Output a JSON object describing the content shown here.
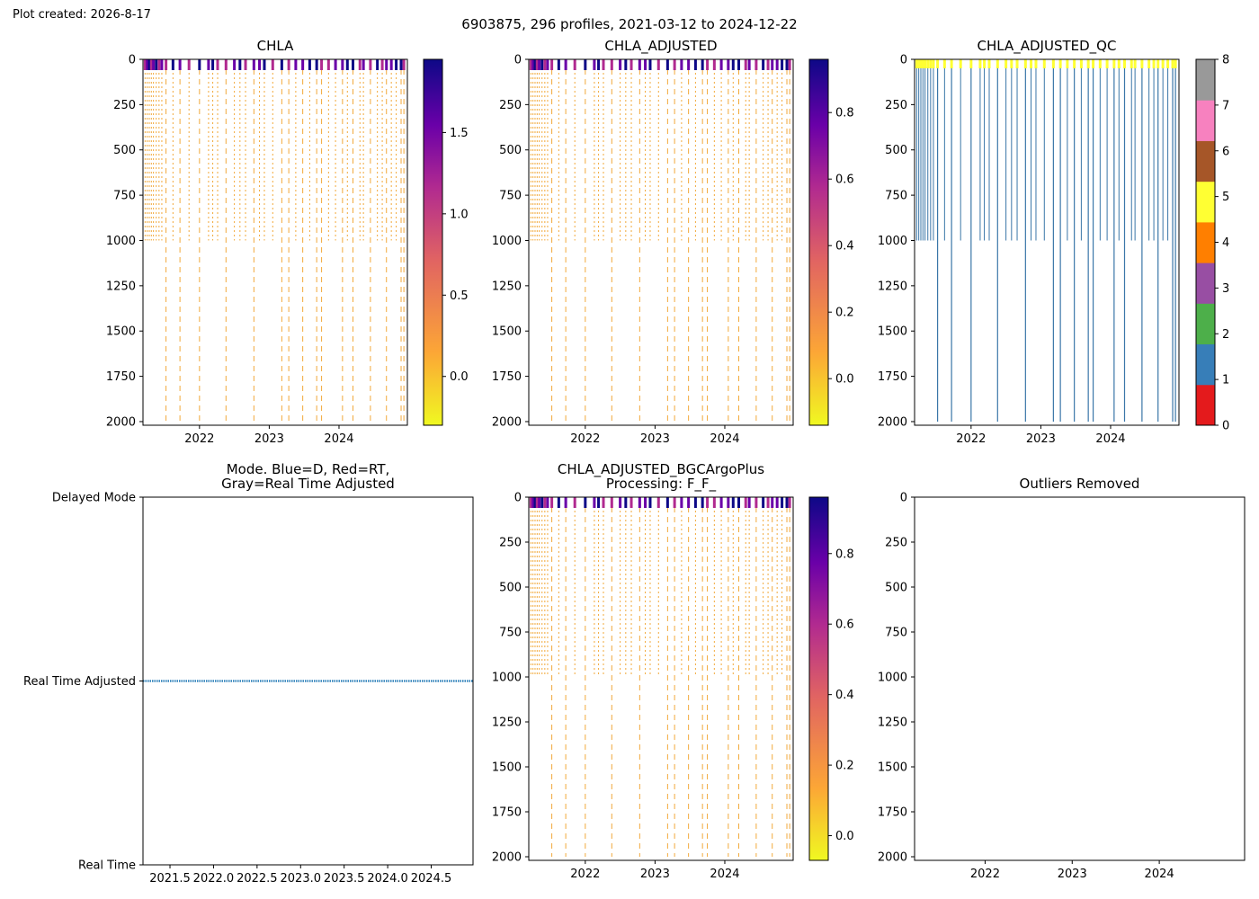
{
  "figure": {
    "created_label": "Plot created: 2026-8-17",
    "suptitle": "6903875, 296 profiles, 2021-03-12 to 2024-12-22"
  },
  "colors": {
    "plasma_stops": [
      "#f0f921",
      "#fca636",
      "#e16462",
      "#b12a90",
      "#6a00a8",
      "#0d0887"
    ],
    "qc_colors": [
      "#e41a1c",
      "#377eb8",
      "#4daf4a",
      "#984ea3",
      "#ff7f00",
      "#ffff33",
      "#a65628",
      "#f781bf",
      "#999999"
    ],
    "mode_line": "#1f77b4",
    "profile_line": "#f2a93b",
    "qc_profile_line": "#3a76a8"
  },
  "chart_data": [
    {
      "type": "heatmap",
      "title": "CHLA",
      "xlabel": "",
      "ylabel": "",
      "xlim": [
        2021.19,
        2024.98
      ],
      "ylim": [
        2020,
        0
      ],
      "xticks": [
        2022,
        2023,
        2024
      ],
      "yticks": [
        0,
        250,
        500,
        750,
        1000,
        1250,
        1500,
        1750,
        2000
      ],
      "colorbar": {
        "range": [
          -0.3,
          1.95
        ],
        "ticks": [
          0.0,
          0.5,
          1.0,
          1.5
        ],
        "tick_labels": [
          "0.0",
          "0.5",
          "1.0",
          "1.5"
        ],
        "colormap": "plasma_r"
      }
    },
    {
      "type": "heatmap",
      "title": "CHLA_ADJUSTED",
      "xlabel": "",
      "ylabel": "",
      "xlim": [
        2021.19,
        2024.98
      ],
      "ylim": [
        2020,
        0
      ],
      "xticks": [
        2022,
        2023,
        2024
      ],
      "yticks": [
        0,
        250,
        500,
        750,
        1000,
        1250,
        1500,
        1750,
        2000
      ],
      "colorbar": {
        "range": [
          -0.14,
          0.96
        ],
        "ticks": [
          0.0,
          0.2,
          0.4,
          0.6,
          0.8
        ],
        "tick_labels": [
          "0.0",
          "0.2",
          "0.4",
          "0.6",
          "0.8"
        ],
        "colormap": "plasma_r"
      }
    },
    {
      "type": "heatmap",
      "title": "CHLA_ADJUSTED_QC",
      "xlabel": "",
      "ylabel": "",
      "xlim": [
        2021.19,
        2024.98
      ],
      "ylim": [
        2020,
        0
      ],
      "xticks": [
        2022,
        2023,
        2024
      ],
      "yticks": [
        0,
        250,
        500,
        750,
        1000,
        1250,
        1500,
        1750,
        2000
      ],
      "colorbar": {
        "range": [
          0,
          8
        ],
        "ticks": [
          0,
          1,
          2,
          3,
          4,
          5,
          6,
          7,
          8
        ],
        "tick_labels": [
          "0",
          "1",
          "2",
          "3",
          "4",
          "5",
          "6",
          "7",
          "8"
        ],
        "colormap": "qc"
      }
    },
    {
      "type": "scatter",
      "title": "Mode. Blue=D, Red=RT,\nGray=Real Time Adjusted",
      "xlabel": "",
      "ylabel": "",
      "xlim": [
        2021.19,
        2024.98
      ],
      "xticks": [
        2021.5,
        2022.0,
        2022.5,
        2023.0,
        2023.5,
        2024.0,
        2024.5
      ],
      "xtick_labels": [
        "2021.5",
        "2022.0",
        "2022.5",
        "2023.0",
        "2023.5",
        "2024.0",
        "2024.5"
      ],
      "ycategories": [
        "Delayed Mode",
        "Real Time Adjusted",
        "Real Time"
      ],
      "series": [
        {
          "y": "Real Time Adjusted",
          "x_range": [
            2021.19,
            2024.98
          ]
        }
      ]
    },
    {
      "type": "heatmap",
      "title": "CHLA_ADJUSTED_BGCArgoPlus\nProcessing: F_F_",
      "xlabel": "",
      "ylabel": "",
      "xlim": [
        2021.19,
        2024.98
      ],
      "ylim": [
        2020,
        0
      ],
      "xticks": [
        2022,
        2023,
        2024
      ],
      "yticks": [
        0,
        250,
        500,
        750,
        1000,
        1250,
        1500,
        1750,
        2000
      ],
      "colorbar": {
        "range": [
          -0.07,
          0.96
        ],
        "ticks": [
          0.0,
          0.2,
          0.4,
          0.6,
          0.8
        ],
        "tick_labels": [
          "0.0",
          "0.2",
          "0.4",
          "0.6",
          "0.8"
        ],
        "colormap": "plasma_r"
      }
    },
    {
      "type": "scatter",
      "title": "Outliers Removed",
      "xlabel": "",
      "ylabel": "",
      "xlim": [
        2021.19,
        2024.98
      ],
      "ylim": [
        2020,
        0
      ],
      "xticks": [
        2022,
        2023,
        2024
      ],
      "yticks": [
        0,
        250,
        500,
        750,
        1000,
        1250,
        1500,
        1750,
        2000
      ],
      "series": []
    }
  ],
  "profiles": {
    "deep_dates": [
      2021.52,
      2021.72,
      2022.0,
      2022.38,
      2022.78,
      2023.18,
      2023.28,
      2023.48,
      2023.68,
      2023.75,
      2024.05,
      2024.2,
      2024.45,
      2024.68,
      2024.89,
      2024.93
    ],
    "shallow_dates": [
      2021.22,
      2021.25,
      2021.28,
      2021.31,
      2021.34,
      2021.38,
      2021.42,
      2021.46,
      2021.62,
      2021.85,
      2022.13,
      2022.19,
      2022.26,
      2022.5,
      2022.58,
      2022.66,
      2022.86,
      2022.93,
      2023.05,
      2023.38,
      2023.58,
      2023.85,
      2023.95,
      2024.12,
      2024.3,
      2024.35,
      2024.55,
      2024.62,
      2024.75,
      2024.82
    ],
    "deep_max_depth": 2000,
    "shallow_max_depth": 1000
  }
}
